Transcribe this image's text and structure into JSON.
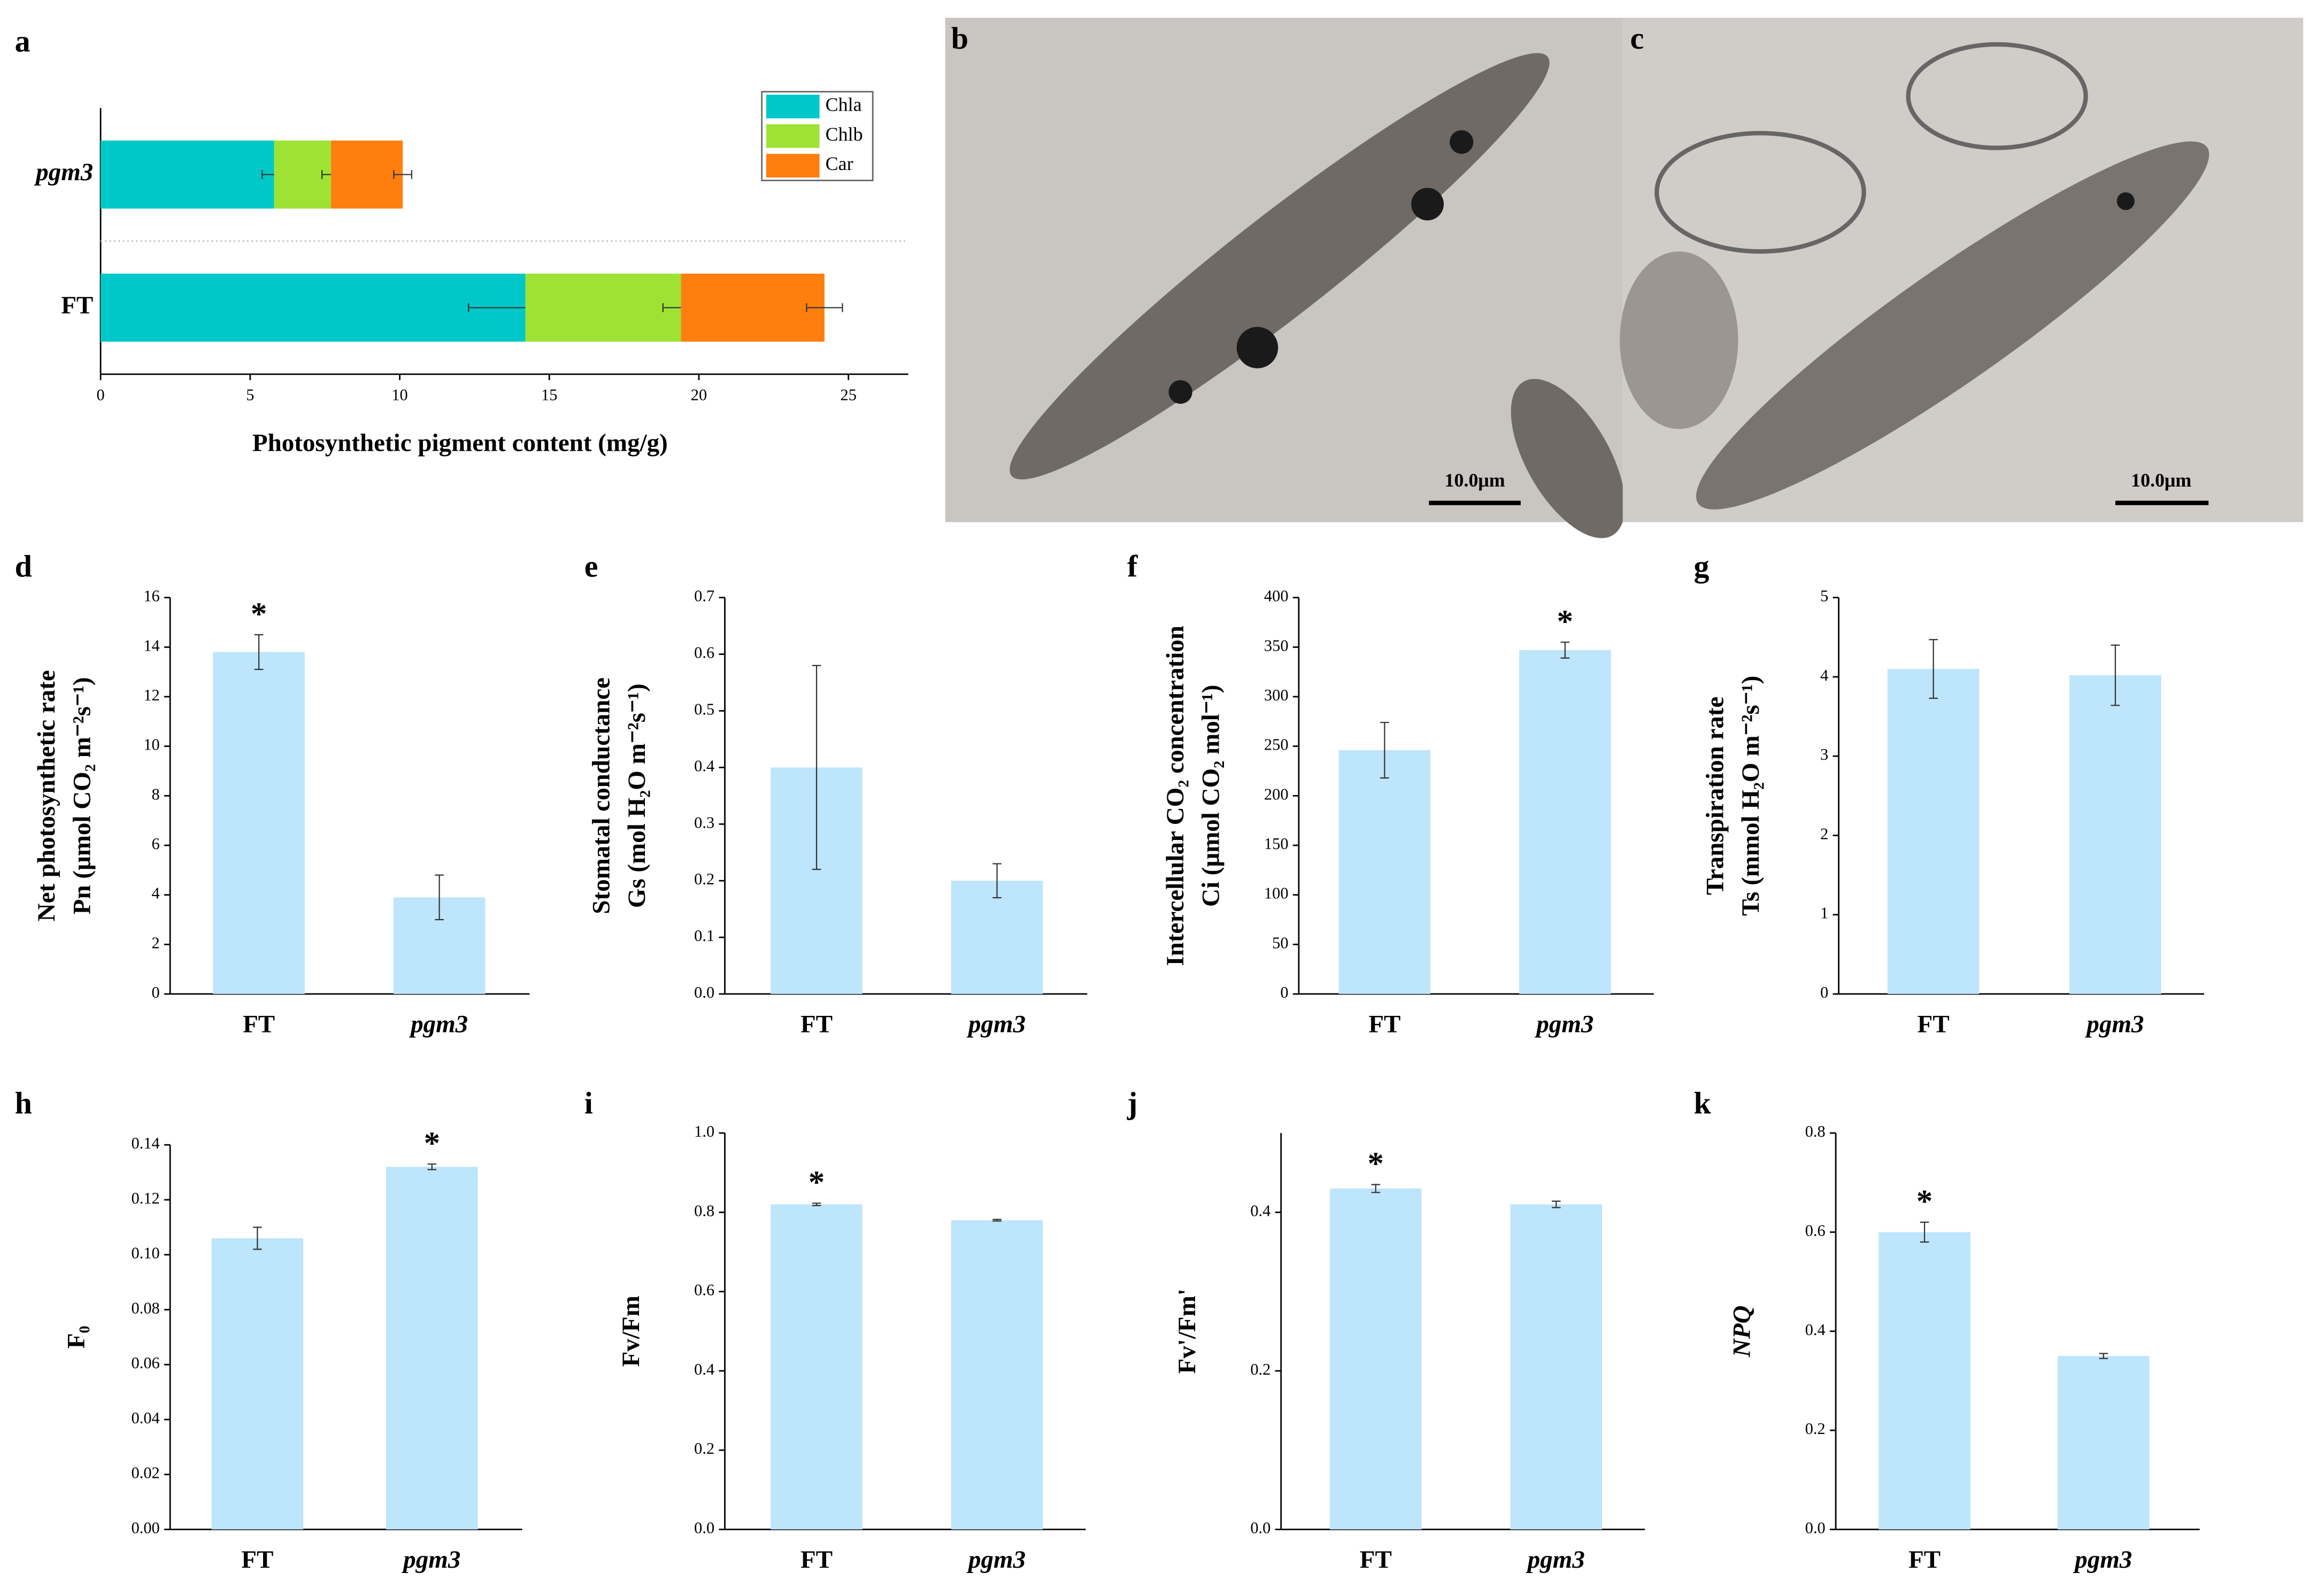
{
  "images": [
    {
      "label": "b",
      "scale_bar": "10.0μm"
    },
    {
      "label": "c",
      "scale_bar": "10.0μm"
    }
  ],
  "chart_data": [
    {
      "label": "a",
      "type": "bar",
      "orientation": "horizontal",
      "stacked": true,
      "legend": "upper right",
      "categories": [
        "pgm3",
        "FT"
      ],
      "category_font_style": [
        "italic",
        "normal"
      ],
      "series": [
        {
          "name": "Chla",
          "color": "#00c8c8",
          "values": [
            5.8,
            14.2
          ],
          "errors": [
            0.4,
            1.9
          ]
        },
        {
          "name": "Chlb",
          "color": "#9ee334",
          "values": [
            1.9,
            5.2
          ],
          "errors": [
            0.3,
            0.6
          ]
        },
        {
          "name": "Car",
          "color": "#ff7f0e",
          "values": [
            2.4,
            4.8
          ],
          "errors": [
            0.3,
            0.6
          ]
        }
      ],
      "xlim": [
        0,
        27
      ],
      "xticks": [
        0,
        5,
        10,
        15,
        20,
        25
      ],
      "xlabel": "Photosynthetic pigment content (mg/g)"
    },
    {
      "label": "d",
      "type": "bar",
      "categories": [
        "FT",
        "pgm3"
      ],
      "category_font_style": [
        "normal",
        "italic"
      ],
      "color": "#bde5fb",
      "values": [
        13.8,
        3.9
      ],
      "errors": [
        0.7,
        0.9
      ],
      "markers": [
        "*",
        null
      ],
      "ylim": [
        0,
        16
      ],
      "yticks": [
        0,
        2,
        4,
        6,
        8,
        10,
        12,
        14,
        16
      ],
      "ylabel": [
        "Net photosynthetic rate",
        "Pn (μmol CO₂ m⁻²s⁻¹)"
      ]
    },
    {
      "label": "e",
      "type": "bar",
      "categories": [
        "FT",
        "pgm3"
      ],
      "category_font_style": [
        "normal",
        "italic"
      ],
      "color": "#bde5fb",
      "values": [
        0.4,
        0.2
      ],
      "errors": [
        0.18,
        0.03
      ],
      "markers": [
        null,
        null
      ],
      "ylim": [
        0,
        0.7
      ],
      "yticks": [
        {
          "value": 0,
          "label": "0.0"
        },
        0.1,
        0.2,
        0.3,
        0.4,
        0.5,
        0.6,
        0.7
      ],
      "ylabel": [
        "Stomatal conductance",
        "Gs (mol H₂O m⁻²s⁻¹)"
      ]
    },
    {
      "label": "f",
      "type": "bar",
      "categories": [
        "FT",
        "pgm3"
      ],
      "category_font_style": [
        "normal",
        "italic"
      ],
      "color": "#bde5fb",
      "values": [
        246,
        347
      ],
      "errors": [
        28,
        8
      ],
      "markers": [
        null,
        "*"
      ],
      "ylim": [
        0,
        400
      ],
      "yticks": [
        0,
        50,
        100,
        150,
        200,
        250,
        300,
        350,
        400
      ],
      "ylabel": [
        "Intercellular CO₂ concentration",
        "Ci (μmol CO₂ mol⁻¹)"
      ]
    },
    {
      "label": "g",
      "type": "bar",
      "categories": [
        "FT",
        "pgm3"
      ],
      "category_font_style": [
        "normal",
        "italic"
      ],
      "color": "#bde5fb",
      "values": [
        4.1,
        4.02
      ],
      "errors": [
        0.37,
        0.38
      ],
      "markers": [
        null,
        null
      ],
      "ylim": [
        0,
        5
      ],
      "yticks": [
        0,
        1,
        2,
        3,
        4,
        5
      ],
      "ylabel": [
        "Transpiration rate",
        "Ts (mmol H₂O m⁻²s⁻¹)"
      ]
    },
    {
      "label": "h",
      "type": "bar",
      "categories": [
        "FT",
        "pgm3"
      ],
      "category_font_style": [
        "normal",
        "italic"
      ],
      "color": "#bde5fb",
      "values": [
        0.106,
        0.132
      ],
      "errors": [
        0.004,
        0.001
      ],
      "markers": [
        null,
        "*"
      ],
      "ylim": [
        0,
        0.14
      ],
      "yticks": [
        {
          "value": 0,
          "label": "0.00"
        },
        {
          "value": 0.02,
          "label": "0.02"
        },
        {
          "value": 0.04,
          "label": "0.04"
        },
        {
          "value": 0.06,
          "label": "0.06"
        },
        {
          "value": 0.08,
          "label": "0.08"
        },
        {
          "value": 0.1,
          "label": "0.10"
        },
        {
          "value": 0.12,
          "label": "0.12"
        },
        0.14
      ],
      "ylabel": [
        "F₀"
      ]
    },
    {
      "label": "i",
      "type": "bar",
      "categories": [
        "FT",
        "pgm3"
      ],
      "category_font_style": [
        "normal",
        "italic"
      ],
      "color": "#bde5fb",
      "values": [
        0.82,
        0.78
      ],
      "errors": [
        0.003,
        0.002
      ],
      "markers": [
        "*",
        null
      ],
      "ylim": [
        0,
        1.0
      ],
      "yticks": [
        {
          "value": 0,
          "label": "0.0"
        },
        0.2,
        0.4,
        0.6,
        0.8,
        {
          "value": 1,
          "label": "1.0"
        }
      ],
      "ylabel": [
        "Fv/Fm"
      ]
    },
    {
      "label": "j",
      "type": "bar",
      "categories": [
        "FT",
        "pgm3"
      ],
      "category_font_style": [
        "normal",
        "italic"
      ],
      "color": "#bde5fb",
      "values": [
        0.43,
        0.41
      ],
      "errors": [
        0.005,
        0.004
      ],
      "markers": [
        "*",
        null
      ],
      "ylim": [
        0,
        0.5
      ],
      "yticks": [
        {
          "value": 0,
          "label": "0.0"
        },
        0.2,
        0.4
      ],
      "ylabel": [
        "Fv'/Fm'"
      ]
    },
    {
      "label": "k",
      "type": "bar",
      "categories": [
        "FT",
        "pgm3"
      ],
      "category_font_style": [
        "normal",
        "italic"
      ],
      "color": "#bde5fb",
      "values": [
        0.6,
        0.35
      ],
      "errors": [
        0.02,
        0.005
      ],
      "markers": [
        "*",
        null
      ],
      "ylim": [
        0,
        0.8
      ],
      "yticks": [
        {
          "value": 0,
          "label": "0.0"
        },
        0.2,
        0.4,
        0.6,
        0.8
      ],
      "ylabel": [
        "NPQ"
      ],
      "ylabel_font_style": "italic"
    }
  ]
}
